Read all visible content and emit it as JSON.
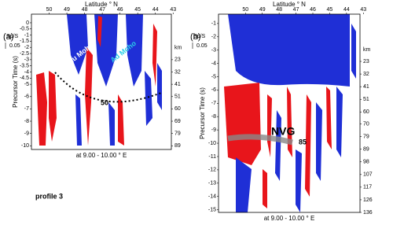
{
  "panels": [
    {
      "label": "(a)",
      "top_axis_label": "Latitude ° N",
      "xlim": [
        51,
        43.1
      ],
      "xticks": [
        50,
        49,
        48,
        47,
        46,
        45,
        44,
        43
      ],
      "y_axis_label": "Precursor Time (s)",
      "ylim": [
        0.7,
        -10.3
      ],
      "yticks": [
        0,
        -0.5,
        -1,
        -1.5,
        -2,
        -2.5,
        -3,
        -3.5,
        -4,
        -4.5,
        -5,
        -6,
        -7,
        -8,
        -9,
        -10
      ],
      "scale_label": "Sp/S",
      "scale_value": 0.05,
      "depth_unit": "km",
      "depth_ticks": [
        {
          "value": -3,
          "label": "23"
        },
        {
          "value": -4,
          "label": "32"
        },
        {
          "value": -5,
          "label": "41"
        },
        {
          "value": -6,
          "label": "51"
        },
        {
          "value": -7,
          "label": "60"
        },
        {
          "value": -8,
          "label": "69"
        },
        {
          "value": -9,
          "label": "79"
        },
        {
          "value": -10,
          "label": "89"
        }
      ],
      "bottom_label": "at 9.00 - 10.00 ° E",
      "moho_labels": [
        "Eu Moho",
        "Ad Moho"
      ],
      "depth_marker": "50"
    },
    {
      "label": "(b)",
      "top_axis_label": "Latitude ° N",
      "xlim": [
        51.6,
        43.2
      ],
      "xticks": [
        50,
        49,
        48,
        47,
        46,
        45,
        44,
        43
      ],
      "y_axis_label": "Precursor Time (s)",
      "ylim": [
        -0.3,
        -15.2
      ],
      "yticks": [
        -1,
        -2,
        -3,
        -4,
        -5,
        -6,
        -7,
        -8,
        -9,
        -10,
        -11,
        -12,
        -13,
        -14,
        -15
      ],
      "scale_label": "Sp/S",
      "scale_value": 0.05,
      "depth_unit": "km",
      "depth_ticks": [
        {
          "value": -3.85,
          "label": "23"
        },
        {
          "value": -4.8,
          "label": "32"
        },
        {
          "value": -5.75,
          "label": "41"
        },
        {
          "value": -6.7,
          "label": "51"
        },
        {
          "value": -7.65,
          "label": "60"
        },
        {
          "value": -8.55,
          "label": "70"
        },
        {
          "value": -9.5,
          "label": "79"
        },
        {
          "value": -10.45,
          "label": "89"
        },
        {
          "value": -11.4,
          "label": "98"
        },
        {
          "value": -12.35,
          "label": "107"
        },
        {
          "value": -13.3,
          "label": "117"
        },
        {
          "value": -14.25,
          "label": "126"
        },
        {
          "value": -15.2,
          "label": "136"
        }
      ],
      "bottom_label": "at 9.00 - 10.00 ° E",
      "phase_label": "NVG",
      "depth_marker": "85"
    }
  ],
  "footnote": "profile 3"
}
